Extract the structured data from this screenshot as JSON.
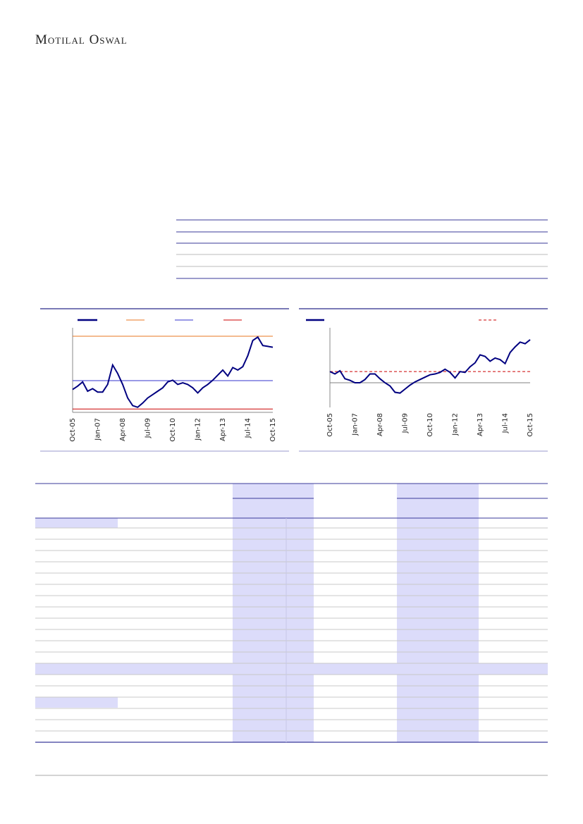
{
  "header": {
    "logo": "Motilal Oswal"
  },
  "chart_data": [
    {
      "type": "line",
      "categories": [
        "Oct-05",
        null,
        null,
        null,
        null,
        "Jan-07",
        null,
        null,
        null,
        null,
        "Apr-08",
        null,
        null,
        null,
        null,
        "Jul-09",
        null,
        null,
        null,
        null,
        "Oct-10",
        null,
        null,
        null,
        null,
        "Jan-12",
        null,
        null,
        null,
        null,
        "Apr-13",
        null,
        null,
        null,
        null,
        "Jul-14",
        null,
        null,
        null,
        null,
        "Oct-15"
      ],
      "series": [
        {
          "color": "#000080",
          "values": [
            27,
            31,
            36,
            25,
            28,
            24,
            24,
            33,
            56,
            46,
            33,
            17,
            8,
            6,
            11,
            17,
            21,
            25,
            29,
            36,
            38,
            33,
            35,
            33,
            29,
            23,
            29,
            33,
            38,
            44,
            50,
            43,
            53,
            50,
            54,
            67,
            85,
            89,
            79,
            78,
            77
          ]
        }
      ],
      "reference_lines": [
        {
          "color": "#e87722",
          "value": 90
        },
        {
          "color": "#3333cc",
          "value": 37.5
        },
        {
          "color": "#cc0000",
          "value": 4
        }
      ],
      "ylim": [
        0,
        100
      ]
    },
    {
      "type": "line",
      "categories": [
        "Oct-05",
        null,
        null,
        null,
        null,
        "Jan-07",
        null,
        null,
        null,
        null,
        "Apr-08",
        null,
        null,
        null,
        null,
        "Jul-09",
        null,
        null,
        null,
        null,
        "Oct-10",
        null,
        null,
        null,
        null,
        "Jan-12",
        null,
        null,
        null,
        null,
        "Apr-13",
        null,
        null,
        null,
        null,
        "Jul-14",
        null,
        null,
        null,
        null,
        "Oct-15"
      ],
      "series": [
        {
          "color": "#000080",
          "values": [
            45,
            42,
            46,
            36,
            34,
            31,
            31,
            35,
            42,
            42,
            36,
            31,
            27,
            19,
            18,
            23,
            28,
            32,
            35,
            38,
            41,
            42,
            44,
            48,
            44,
            37,
            45,
            44,
            51,
            56,
            66,
            64,
            58,
            62,
            60,
            55,
            69,
            76,
            82,
            80,
            85
          ]
        }
      ],
      "reference_lines": [
        {
          "color": "#cc0000",
          "value": 45,
          "dashed": true
        },
        {
          "color": "#808080",
          "value": 31
        }
      ],
      "ylim": [
        0,
        100
      ]
    }
  ]
}
